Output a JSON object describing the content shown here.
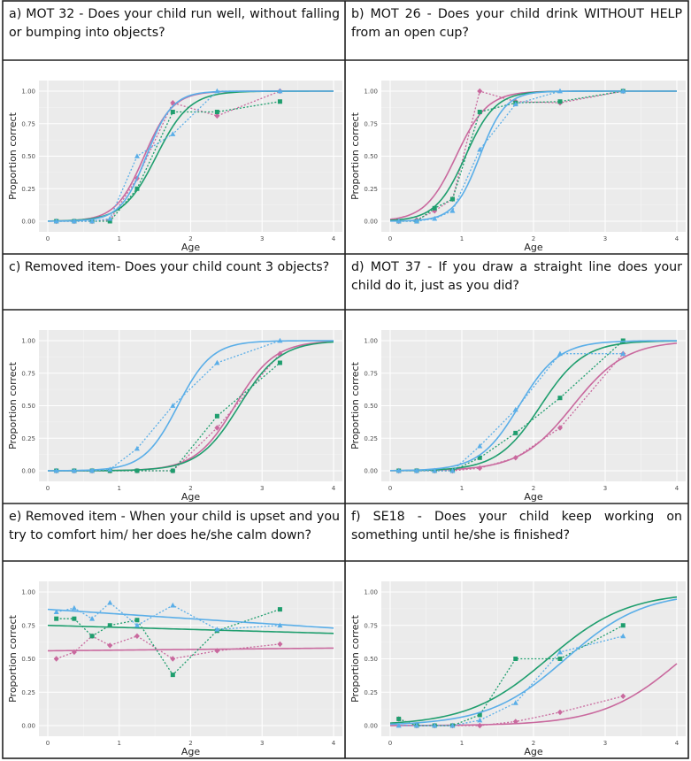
{
  "chart_data": [
    {
      "panel": "a",
      "title": "a) MOT 32 - Does your child run well, without falling or bumping into objects?",
      "type": "line",
      "xlabel": "Age",
      "ylabel": "Proportion correct",
      "xlim": [
        0,
        4
      ],
      "ylim": [
        0,
        1
      ],
      "xticks": [
        "0",
        "1",
        "2",
        "3",
        "4"
      ],
      "yticks": [
        "0.00",
        "0.25",
        "0.50",
        "0.75",
        "1.00"
      ],
      "series": [
        {
          "name": "pink",
          "color": "#c9699e",
          "marker": "diamond",
          "points": [
            [
              0.12,
              0
            ],
            [
              0.37,
              0
            ],
            [
              0.62,
              0
            ],
            [
              0.87,
              0.01
            ],
            [
              1.25,
              0.33
            ],
            [
              1.75,
              0.91
            ],
            [
              2.37,
              0.81
            ],
            [
              3.25,
              1.0
            ]
          ],
          "curve": {
            "mid": 1.35,
            "slope": 5.0
          }
        },
        {
          "name": "green",
          "color": "#1f9e6e",
          "marker": "square",
          "points": [
            [
              0.12,
              0
            ],
            [
              0.37,
              0
            ],
            [
              0.62,
              0
            ],
            [
              0.87,
              0
            ],
            [
              1.25,
              0.25
            ],
            [
              1.75,
              0.84
            ],
            [
              2.37,
              0.84
            ],
            [
              3.25,
              0.92
            ]
          ],
          "curve": {
            "mid": 1.52,
            "slope": 4.3
          }
        },
        {
          "name": "blue",
          "color": "#5aaee8",
          "marker": "triangle",
          "points": [
            [
              0.12,
              0
            ],
            [
              0.37,
              0
            ],
            [
              0.62,
              0
            ],
            [
              0.87,
              0.02
            ],
            [
              1.25,
              0.5
            ],
            [
              1.75,
              0.67
            ],
            [
              2.37,
              1.0
            ],
            [
              3.25,
              1.0
            ]
          ],
          "curve": {
            "mid": 1.38,
            "slope": 5.5
          }
        }
      ]
    },
    {
      "panel": "b",
      "title": "b) MOT 26 - Does your child drink WITHOUT HELP from an open cup?",
      "type": "line",
      "xlabel": "Age",
      "ylabel": "Proportion correct",
      "xlim": [
        0,
        4
      ],
      "ylim": [
        0,
        1
      ],
      "xticks": [
        "0",
        "1",
        "2",
        "3",
        "4"
      ],
      "yticks": [
        "0.00",
        "0.25",
        "0.50",
        "0.75",
        "1.00"
      ],
      "series": [
        {
          "name": "pink",
          "color": "#c9699e",
          "marker": "diamond",
          "points": [
            [
              0.12,
              0
            ],
            [
              0.37,
              0.01
            ],
            [
              0.62,
              0.08
            ],
            [
              0.87,
              0.17
            ],
            [
              1.25,
              1.0
            ],
            [
              1.75,
              0.92
            ],
            [
              2.37,
              0.91
            ],
            [
              3.25,
              1.0
            ]
          ],
          "curve": {
            "mid": 0.92,
            "slope": 4.6
          }
        },
        {
          "name": "green",
          "color": "#1f9e6e",
          "marker": "square",
          "points": [
            [
              0.12,
              0
            ],
            [
              0.37,
              0
            ],
            [
              0.62,
              0.1
            ],
            [
              0.87,
              0.17
            ],
            [
              1.25,
              0.84
            ],
            [
              1.75,
              0.91
            ],
            [
              2.37,
              0.92
            ],
            [
              3.25,
              1.0
            ]
          ],
          "curve": {
            "mid": 1.05,
            "slope": 4.8
          }
        },
        {
          "name": "blue",
          "color": "#5aaee8",
          "marker": "triangle",
          "points": [
            [
              0.12,
              0
            ],
            [
              0.37,
              0
            ],
            [
              0.62,
              0.02
            ],
            [
              0.87,
              0.08
            ],
            [
              1.25,
              0.55
            ],
            [
              1.75,
              0.9
            ],
            [
              2.37,
              1.0
            ],
            [
              3.25,
              1.0
            ]
          ],
          "curve": {
            "mid": 1.25,
            "slope": 5.6
          }
        }
      ]
    },
    {
      "panel": "c",
      "title": "c) Removed item- Does your child count 3 objects?",
      "type": "line",
      "xlabel": "Age",
      "ylabel": "Proportion correct",
      "xlim": [
        0,
        4
      ],
      "ylim": [
        0,
        1
      ],
      "xticks": [
        "0",
        "1",
        "2",
        "3",
        "4"
      ],
      "yticks": [
        "0.00",
        "0.25",
        "0.50",
        "0.75",
        "1.00"
      ],
      "series": [
        {
          "name": "pink",
          "color": "#c9699e",
          "marker": "diamond",
          "points": [
            [
              0.12,
              0
            ],
            [
              0.37,
              0
            ],
            [
              0.62,
              0
            ],
            [
              0.87,
              0
            ],
            [
              1.25,
              0
            ],
            [
              1.75,
              0
            ],
            [
              2.37,
              0.33
            ],
            [
              3.25,
              0.9
            ]
          ],
          "curve": {
            "mid": 2.62,
            "slope": 3.6
          }
        },
        {
          "name": "green",
          "color": "#1f9e6e",
          "marker": "square",
          "points": [
            [
              0.12,
              0
            ],
            [
              0.37,
              0
            ],
            [
              0.62,
              0
            ],
            [
              0.87,
              0
            ],
            [
              1.25,
              0
            ],
            [
              1.75,
              0
            ],
            [
              2.37,
              0.42
            ],
            [
              3.25,
              0.83
            ]
          ],
          "curve": {
            "mid": 2.68,
            "slope": 3.5
          }
        },
        {
          "name": "blue",
          "color": "#5aaee8",
          "marker": "triangle",
          "points": [
            [
              0.12,
              0
            ],
            [
              0.37,
              0
            ],
            [
              0.62,
              0
            ],
            [
              0.87,
              0.01
            ],
            [
              1.25,
              0.17
            ],
            [
              1.75,
              0.5
            ],
            [
              2.37,
              0.83
            ],
            [
              3.25,
              1.0
            ]
          ],
          "curve": {
            "mid": 1.82,
            "slope": 4.2
          }
        }
      ]
    },
    {
      "panel": "d",
      "title": "d) MOT 37 - If you draw a straight line does your child do it, just as you did?",
      "type": "line",
      "xlabel": "Age",
      "ylabel": "Proportion correct",
      "xlim": [
        0,
        4
      ],
      "ylim": [
        0,
        1
      ],
      "xticks": [
        "0",
        "1",
        "2",
        "3",
        "4"
      ],
      "yticks": [
        "0.00",
        "0.25",
        "0.50",
        "0.75",
        "1.00"
      ],
      "series": [
        {
          "name": "pink",
          "color": "#c9699e",
          "marker": "diamond",
          "points": [
            [
              0.12,
              0
            ],
            [
              0.37,
              0
            ],
            [
              0.62,
              0
            ],
            [
              0.87,
              0
            ],
            [
              1.25,
              0.02
            ],
            [
              1.75,
              0.1
            ],
            [
              2.37,
              0.33
            ],
            [
              3.25,
              0.9
            ]
          ],
          "curve": {
            "mid": 2.55,
            "slope": 2.7
          }
        },
        {
          "name": "green",
          "color": "#1f9e6e",
          "marker": "square",
          "points": [
            [
              0.12,
              0
            ],
            [
              0.37,
              0
            ],
            [
              0.62,
              0
            ],
            [
              0.87,
              0
            ],
            [
              1.25,
              0.1
            ],
            [
              1.75,
              0.29
            ],
            [
              2.37,
              0.56
            ],
            [
              3.25,
              1.0
            ]
          ],
          "curve": {
            "mid": 2.1,
            "slope": 3.3
          }
        },
        {
          "name": "blue",
          "color": "#5aaee8",
          "marker": "triangle",
          "points": [
            [
              0.12,
              0
            ],
            [
              0.37,
              0
            ],
            [
              0.62,
              0
            ],
            [
              0.87,
              0
            ],
            [
              1.25,
              0.19
            ],
            [
              1.75,
              0.47
            ],
            [
              2.37,
              0.9
            ],
            [
              3.25,
              0.9
            ]
          ],
          "curve": {
            "mid": 1.8,
            "slope": 3.6
          }
        }
      ]
    },
    {
      "panel": "e",
      "title": "e) Removed item - When your child is upset and you try to comfort him/ her does he/she calm down?",
      "type": "line",
      "xlabel": "Age",
      "ylabel": "Proportion correct",
      "xlim": [
        0,
        4
      ],
      "ylim": [
        0,
        1
      ],
      "xticks": [
        "0",
        "1",
        "2",
        "3",
        "4"
      ],
      "yticks": [
        "0.00",
        "0.25",
        "0.50",
        "0.75",
        "1.00"
      ],
      "series": [
        {
          "name": "pink",
          "color": "#c9699e",
          "marker": "diamond",
          "points": [
            [
              0.12,
              0.5
            ],
            [
              0.37,
              0.55
            ],
            [
              0.62,
              0.67
            ],
            [
              0.87,
              0.6
            ],
            [
              1.25,
              0.67
            ],
            [
              1.75,
              0.5
            ],
            [
              2.37,
              0.56
            ],
            [
              3.25,
              0.61
            ]
          ],
          "line": {
            "y0": 0.56,
            "y4": 0.58
          }
        },
        {
          "name": "green",
          "color": "#1f9e6e",
          "marker": "square",
          "points": [
            [
              0.12,
              0.8
            ],
            [
              0.37,
              0.8
            ],
            [
              0.62,
              0.67
            ],
            [
              0.87,
              0.75
            ],
            [
              1.25,
              0.79
            ],
            [
              1.75,
              0.38
            ],
            [
              2.37,
              0.71
            ],
            [
              3.25,
              0.87
            ]
          ],
          "line": {
            "y0": 0.75,
            "y4": 0.69
          }
        },
        {
          "name": "blue",
          "color": "#5aaee8",
          "marker": "triangle",
          "points": [
            [
              0.12,
              0.85
            ],
            [
              0.37,
              0.88
            ],
            [
              0.62,
              0.8
            ],
            [
              0.87,
              0.92
            ],
            [
              1.25,
              0.75
            ],
            [
              1.75,
              0.9
            ],
            [
              2.37,
              0.72
            ],
            [
              3.25,
              0.75
            ]
          ],
          "line": {
            "y0": 0.87,
            "y4": 0.73
          }
        }
      ]
    },
    {
      "panel": "f",
      "title": "f) SE18 - Does your child keep working on something until he/she is finished?",
      "type": "line",
      "xlabel": "Age",
      "ylabel": "Proportion correct",
      "xlim": [
        0,
        4
      ],
      "ylim": [
        0,
        1
      ],
      "xticks": [
        "0",
        "1",
        "2",
        "3",
        "4"
      ],
      "yticks": [
        "0.00",
        "0.25",
        "0.50",
        "0.75",
        "1.00"
      ],
      "series": [
        {
          "name": "pink",
          "color": "#c9699e",
          "marker": "diamond",
          "points": [
            [
              0.12,
              0.05
            ],
            [
              0.37,
              0
            ],
            [
              0.62,
              0
            ],
            [
              0.87,
              0
            ],
            [
              1.25,
              0
            ],
            [
              1.75,
              0.03
            ],
            [
              2.37,
              0.1
            ],
            [
              3.25,
              0.22
            ]
          ],
          "curve": {
            "mid": 4.08,
            "slope": 1.8
          }
        },
        {
          "name": "green",
          "color": "#1f9e6e",
          "marker": "square",
          "points": [
            [
              0.12,
              0.05
            ],
            [
              0.37,
              0
            ],
            [
              0.62,
              0
            ],
            [
              0.87,
              0
            ],
            [
              1.25,
              0.08
            ],
            [
              1.75,
              0.5
            ],
            [
              2.37,
              0.5
            ],
            [
              3.25,
              0.75
            ]
          ],
          "curve": {
            "mid": 2.2,
            "slope": 1.8
          }
        },
        {
          "name": "blue",
          "color": "#5aaee8",
          "marker": "triangle",
          "points": [
            [
              0.12,
              0
            ],
            [
              0.37,
              0
            ],
            [
              0.62,
              0
            ],
            [
              0.87,
              0
            ],
            [
              1.25,
              0.04
            ],
            [
              1.75,
              0.17
            ],
            [
              2.37,
              0.55
            ],
            [
              3.25,
              0.67
            ]
          ],
          "curve": {
            "mid": 2.45,
            "slope": 1.85
          }
        }
      ]
    }
  ]
}
